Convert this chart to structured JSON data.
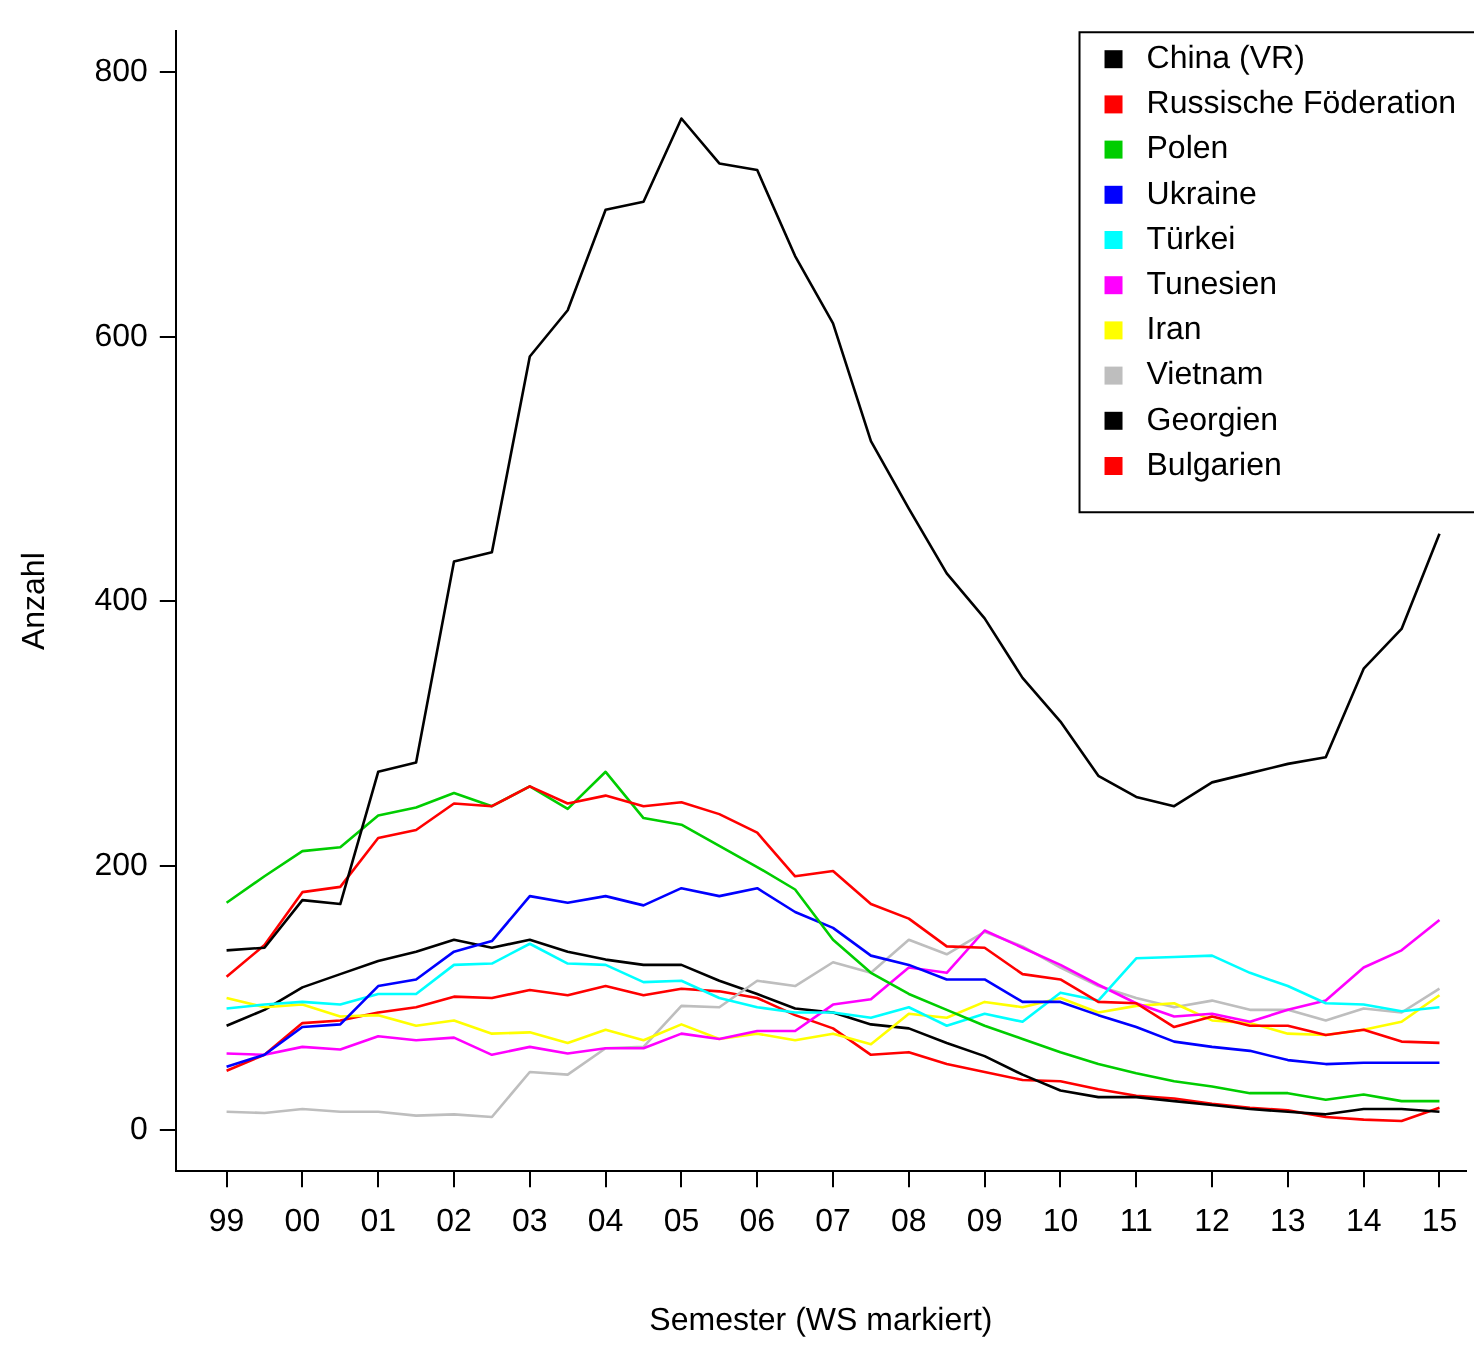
{
  "chart_data": {
    "type": "line",
    "xlabel": "Semester (WS markiert)",
    "ylabel": "Anzahl",
    "x": [
      1999,
      1999.5,
      2000,
      2000.5,
      2001,
      2001.5,
      2002,
      2002.5,
      2003,
      2003.5,
      2004,
      2004.5,
      2005,
      2005.5,
      2006,
      2006.5,
      2007,
      2007.5,
      2008,
      2008.5,
      2009,
      2009.5,
      2010,
      2010.5,
      2011,
      2011.5,
      2012,
      2012.5,
      2013,
      2013.5,
      2014,
      2014.5,
      2015
    ],
    "xlim": [
      1998.33,
      2015.35
    ],
    "xticks": [
      {
        "value": 1999,
        "label": "99"
      },
      {
        "value": 2000,
        "label": "00"
      },
      {
        "value": 2001,
        "label": "01"
      },
      {
        "value": 2002,
        "label": "02"
      },
      {
        "value": 2003,
        "label": "03"
      },
      {
        "value": 2004,
        "label": "04"
      },
      {
        "value": 2005,
        "label": "05"
      },
      {
        "value": 2006,
        "label": "06"
      },
      {
        "value": 2007,
        "label": "07"
      },
      {
        "value": 2008,
        "label": "08"
      },
      {
        "value": 2009,
        "label": "09"
      },
      {
        "value": 2010,
        "label": "10"
      },
      {
        "value": 2011,
        "label": "11"
      },
      {
        "value": 2012,
        "label": "12"
      },
      {
        "value": 2013,
        "label": "13"
      },
      {
        "value": 2014,
        "label": "14"
      },
      {
        "value": 2015,
        "label": "15"
      }
    ],
    "ylim": [
      -31,
      831
    ],
    "yticks": [
      0,
      200,
      400,
      600,
      800
    ],
    "grid": false,
    "legend": "top right",
    "marker": "none",
    "line_style": "solid",
    "series": [
      {
        "name": "China (VR)",
        "color": "#000000",
        "values": [
          136,
          138,
          174,
          171,
          271,
          278,
          430,
          437,
          585,
          620,
          696,
          702,
          765,
          731,
          726,
          661,
          610,
          521,
          470,
          421,
          387,
          342,
          309,
          268,
          252,
          245,
          263,
          270,
          277,
          282,
          349,
          379,
          451
        ]
      },
      {
        "name": "Russische Föderation",
        "color": "#ff0000",
        "values": [
          116,
          140,
          180,
          184,
          221,
          227,
          247,
          245,
          260,
          247,
          253,
          245,
          248,
          239,
          225,
          192,
          196,
          171,
          160,
          139,
          138,
          118,
          114,
          97,
          96,
          78,
          86,
          79,
          79,
          72,
          76,
          67,
          66
        ]
      },
      {
        "name": "Polen",
        "color": "#00cd00",
        "values": [
          172,
          192,
          211,
          214,
          238,
          244,
          255,
          245,
          260,
          243,
          271,
          236,
          231,
          215,
          199,
          182,
          144,
          119,
          103,
          91,
          79,
          69,
          59,
          50,
          43,
          37,
          33,
          28,
          28,
          23,
          27,
          22,
          22
        ]
      },
      {
        "name": "Ukraine",
        "color": "#0000ff",
        "values": [
          48,
          57,
          78,
          80,
          109,
          114,
          135,
          143,
          177,
          172,
          177,
          170,
          183,
          177,
          183,
          165,
          153,
          132,
          125,
          114,
          114,
          97,
          97,
          87,
          78,
          67,
          63,
          60,
          53,
          50,
          51,
          51,
          51
        ]
      },
      {
        "name": "Türkei",
        "color": "#00ffff",
        "values": [
          92,
          95,
          97,
          95,
          103,
          103,
          125,
          126,
          141,
          126,
          125,
          112,
          113,
          100,
          93,
          89,
          89,
          85,
          93,
          79,
          88,
          82,
          104,
          98,
          130,
          131,
          132,
          119,
          109,
          96,
          95,
          90,
          93
        ]
      },
      {
        "name": "Tunesien",
        "color": "#ff00ff",
        "values": [
          58,
          57,
          63,
          61,
          71,
          68,
          70,
          57,
          63,
          58,
          62,
          62,
          73,
          69,
          75,
          75,
          95,
          99,
          123,
          119,
          151,
          138,
          125,
          110,
          96,
          86,
          88,
          82,
          91,
          98,
          123,
          136,
          159
        ]
      },
      {
        "name": "Iran",
        "color": "#ffff00",
        "values": [
          100,
          93,
          95,
          86,
          87,
          79,
          83,
          73,
          74,
          66,
          76,
          68,
          80,
          69,
          73,
          68,
          73,
          65,
          88,
          85,
          97,
          93,
          100,
          89,
          94,
          96,
          83,
          81,
          73,
          72,
          76,
          82,
          102
        ]
      },
      {
        "name": "Vietnam",
        "color": "#bebebe",
        "values": [
          14,
          13,
          16,
          14,
          14,
          11,
          12,
          10,
          44,
          42,
          62,
          63,
          94,
          93,
          113,
          109,
          127,
          119,
          144,
          133,
          150,
          139,
          123,
          109,
          100,
          93,
          98,
          91,
          91,
          83,
          92,
          89,
          107
        ]
      },
      {
        "name": "Georgien",
        "color": "#000000",
        "values": [
          79,
          91,
          108,
          118,
          128,
          135,
          144,
          138,
          144,
          135,
          129,
          125,
          125,
          113,
          103,
          92,
          89,
          80,
          77,
          66,
          56,
          42,
          30,
          25,
          25,
          22,
          19,
          16,
          14,
          12,
          16,
          16,
          14
        ]
      },
      {
        "name": "Bulgarien",
        "color": "#ff0000",
        "values": [
          45,
          57,
          81,
          83,
          89,
          93,
          101,
          100,
          106,
          102,
          109,
          102,
          107,
          105,
          100,
          87,
          77,
          57,
          59,
          50,
          44,
          38,
          37,
          31,
          26,
          24,
          20,
          17,
          15,
          10,
          8,
          7,
          17
        ]
      }
    ]
  }
}
